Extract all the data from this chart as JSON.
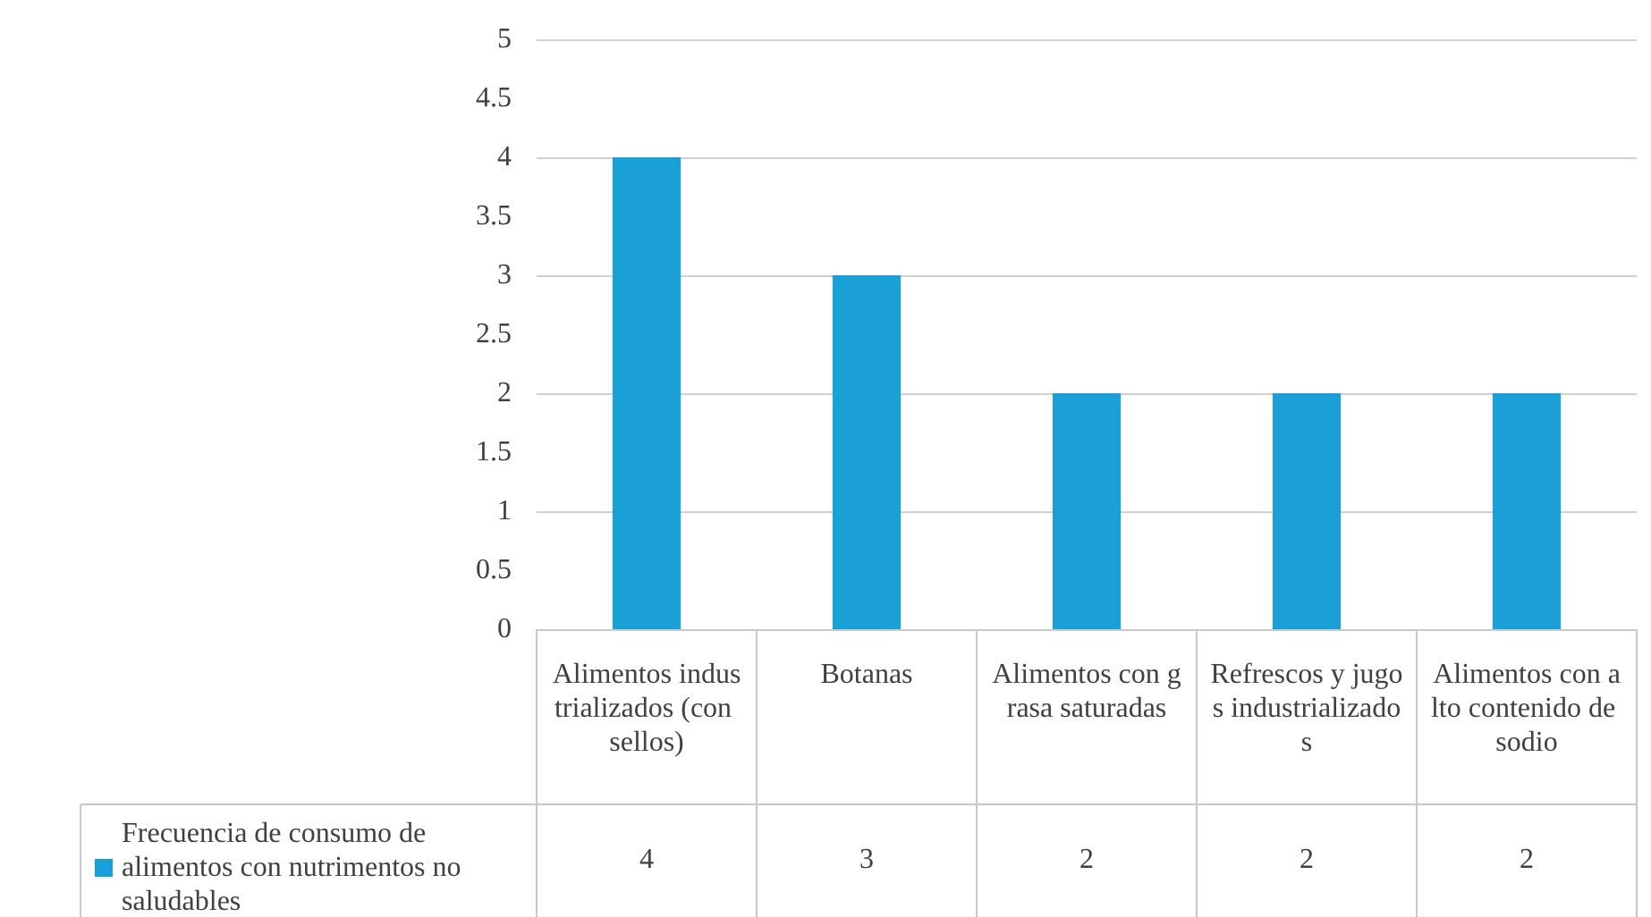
{
  "chart_data": {
    "type": "bar",
    "categories": [
      "Alimentos industrializados (con sellos)",
      "Botanas",
      "Alimentos con grasa saturadas",
      "Refrescos y jugos industrializados",
      "Alimentos con alto contenido de sodio"
    ],
    "series": [
      {
        "name": "Frecuencia de consumo de alimentos con nutrimentos no saludables",
        "color": "#1a9fd6",
        "values": [
          4,
          3,
          2,
          2,
          2
        ]
      }
    ],
    "ylim": [
      0,
      5
    ],
    "yticks": [
      0,
      0.5,
      1,
      1.5,
      2,
      2.5,
      3,
      3.5,
      4,
      4.5,
      5
    ],
    "grid": "y",
    "legend": "bottom left",
    "data_labels": true
  }
}
